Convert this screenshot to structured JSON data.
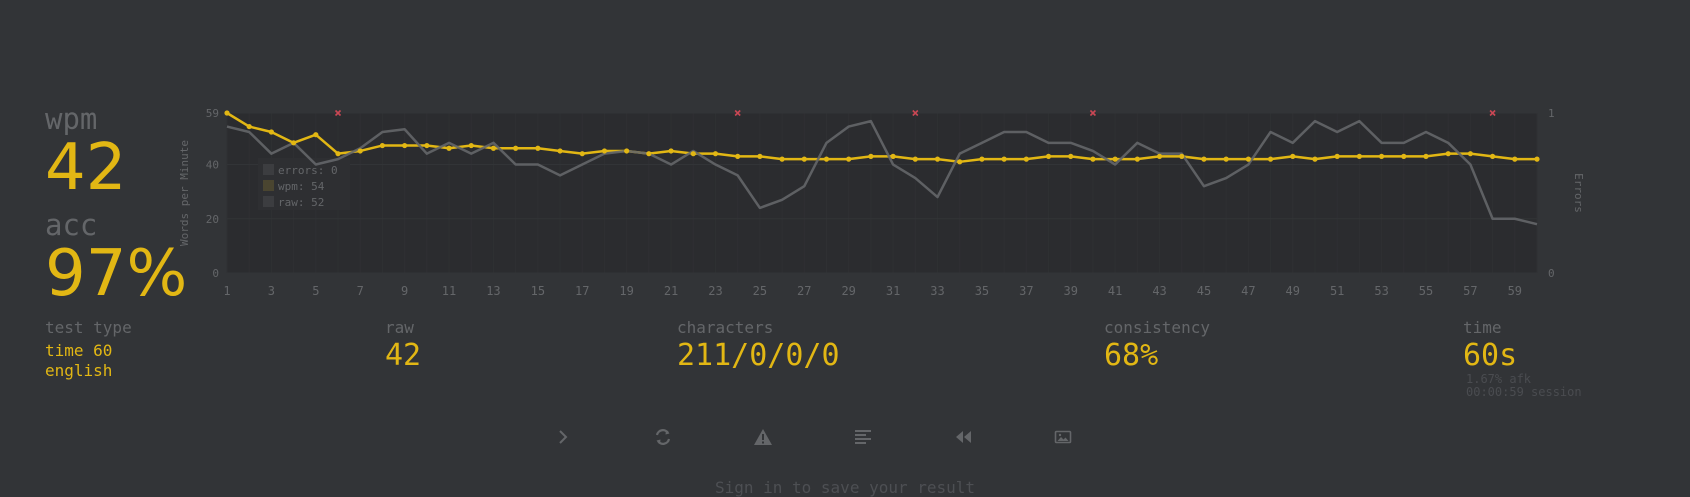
{
  "result": {
    "wpm_label": "wpm",
    "wpm_value": "42",
    "acc_label": "acc",
    "acc_value": "97%"
  },
  "chart_data": {
    "type": "line",
    "x": [
      1,
      2,
      3,
      4,
      5,
      6,
      7,
      8,
      9,
      10,
      11,
      12,
      13,
      14,
      15,
      16,
      17,
      18,
      19,
      20,
      21,
      22,
      23,
      24,
      25,
      26,
      27,
      28,
      29,
      30,
      31,
      32,
      33,
      34,
      35,
      36,
      37,
      38,
      39,
      40,
      41,
      42,
      43,
      44,
      45,
      46,
      47,
      48,
      49,
      50,
      51,
      52,
      53,
      54,
      55,
      56,
      57,
      58,
      59,
      60
    ],
    "x_ticks": [
      "1",
      "3",
      "5",
      "7",
      "9",
      "11",
      "13",
      "15",
      "17",
      "19",
      "21",
      "23",
      "25",
      "27",
      "29",
      "31",
      "33",
      "35",
      "37",
      "39",
      "41",
      "43",
      "45",
      "47",
      "49",
      "51",
      "53",
      "55",
      "57",
      "59"
    ],
    "ylabel": "Words per Minute",
    "y2label": "Errors",
    "ylim": [
      0,
      59
    ],
    "y_ticks": [
      "0",
      "20",
      "40",
      "59"
    ],
    "y2_ticks": [
      "0",
      "1"
    ],
    "grid": true,
    "series": [
      {
        "name": "wpm",
        "color": "#e2b714",
        "values": [
          59,
          54,
          52,
          48,
          51,
          44,
          45,
          47,
          47,
          47,
          46,
          47,
          46,
          46,
          46,
          45,
          44,
          45,
          45,
          44,
          45,
          44,
          44,
          43,
          43,
          42,
          42,
          42,
          42,
          43,
          43,
          42,
          42,
          41,
          42,
          42,
          42,
          43,
          43,
          42,
          42,
          42,
          43,
          43,
          42,
          42,
          42,
          42,
          43,
          42,
          43,
          43,
          43,
          43,
          43,
          44,
          44,
          43,
          42,
          42
        ]
      },
      {
        "name": "raw",
        "color": "#646669",
        "values": [
          54,
          52,
          44,
          48,
          40,
          42,
          46,
          52,
          53,
          44,
          48,
          44,
          48,
          40,
          40,
          36,
          40,
          44,
          45,
          44,
          40,
          45,
          40,
          36,
          24,
          27,
          32,
          48,
          54,
          56,
          40,
          35,
          28,
          44,
          48,
          52,
          52,
          48,
          48,
          45,
          40,
          48,
          44,
          44,
          32,
          35,
          40,
          52,
          48,
          56,
          52,
          56,
          48,
          48,
          52,
          48,
          40,
          20,
          20,
          18
        ]
      }
    ],
    "errors_at": [
      6,
      24,
      32,
      40,
      58
    ],
    "errors_color": "#ca4754",
    "legend": {
      "placement": "top-left",
      "items": [
        "errors: 0",
        "wpm: 54",
        "raw: 52"
      ]
    }
  },
  "bottom": {
    "test_type_label": "test type",
    "test_type_line1": "time 60",
    "test_type_line2": "english",
    "raw_label": "raw",
    "raw_value": "42",
    "characters_label": "characters",
    "characters_value": "211/0/0/0",
    "consistency_label": "consistency",
    "consistency_value": "68%",
    "time_label": "time",
    "time_value": "60s",
    "afk": "1.67% afk",
    "session": "00:00:59 session"
  },
  "actions": {
    "icons": [
      "next-test-icon",
      "restart-icon",
      "report-icon",
      "word-history-icon",
      "replay-icon",
      "screenshot-icon"
    ]
  },
  "signin": "Sign in to save your result",
  "colors": {
    "background": "#323437",
    "main": "#e2b714",
    "sub": "#646669",
    "error": "#ca4754"
  }
}
